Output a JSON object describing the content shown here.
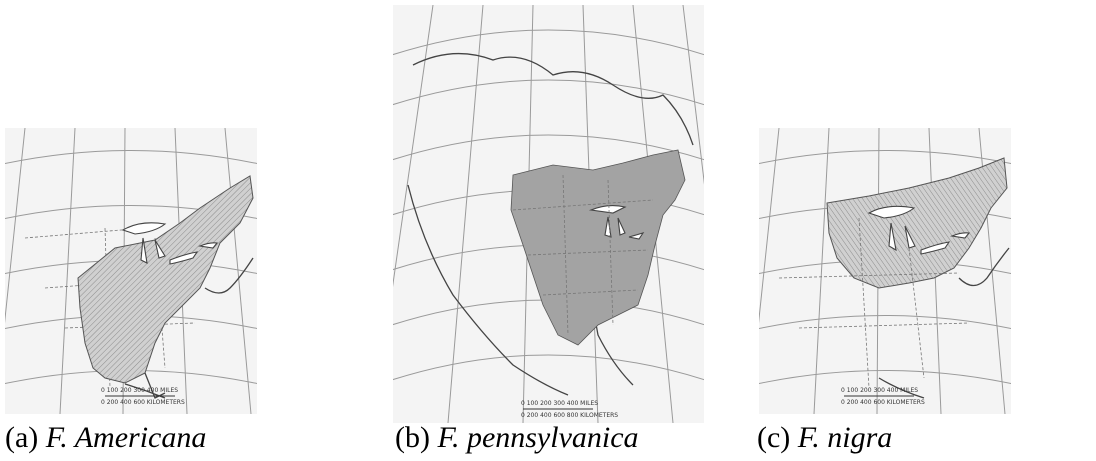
{
  "figure": {
    "panels": [
      {
        "label": "(a)",
        "species": "F. Americana"
      },
      {
        "label": "(b)",
        "species": "F. pennsylvanica"
      },
      {
        "label": "(c)",
        "species": "F. nigra"
      }
    ]
  },
  "map_text": {
    "scale_miles": "0   100   200   300   400 MILES",
    "scale_km": "0   200   400   600 KILOMETERS",
    "scale_km_b": "0   200   400   600   800 KILOMETERS"
  },
  "colors": {
    "background": "#ffffff",
    "map_paper": "#f4f4f4",
    "range_fill_hatched": "#bdbdbd",
    "range_fill_solid": "#a3a3a3",
    "lines": "#444444"
  }
}
